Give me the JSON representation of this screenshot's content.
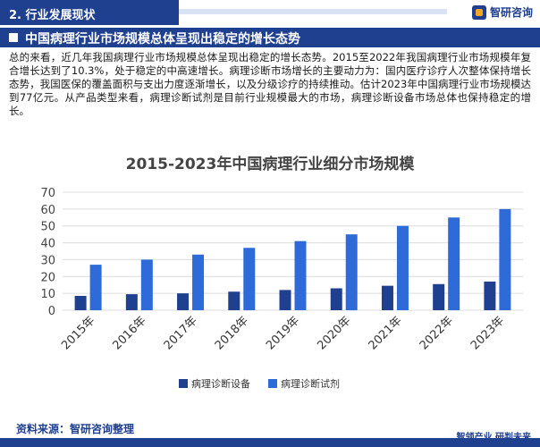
{
  "header": {
    "section": "2. 行业发展现状",
    "logo_text": "智研咨询"
  },
  "banner": {
    "title": "中国病理行业市场规模总体呈现出稳定的增长态势"
  },
  "paragraph": "总的来看，近几年我国病理行业市场规模总体呈现出稳定的增长态势。2015至2022年我国病理行业市场规模年复合增长达到了10.3%，处于稳定的中高速增长。病理诊断市场增长的主要动力为：国内医疗诊疗人次整体保持增长态势，我国医保的覆盖面积与支出力度逐渐增长，以及分级诊疗的持续推动。估计2023年中国病理行业市场规模达到77亿元。从产品类型来看，病理诊断试剂是目前行业规模最大的市场，病理诊断设备市场总体也保持稳定的增长。",
  "chart_data": {
    "type": "bar",
    "title": "2015-2023年中国病理行业细分市场规模",
    "categories": [
      "2015年",
      "2016年",
      "2017年",
      "2018年",
      "2019年",
      "2020年",
      "2021年",
      "2022年",
      "2023年"
    ],
    "series": [
      {
        "name": "病理诊断设备",
        "color": "#1f3f8f",
        "values": [
          8.5,
          9.5,
          10,
          11,
          12,
          13,
          14.5,
          15.5,
          17
        ]
      },
      {
        "name": "病理诊断试剂",
        "color": "#2e6bd9",
        "values": [
          27,
          30,
          33,
          37,
          41,
          45,
          50,
          55,
          60
        ]
      }
    ],
    "yticks": [
      0,
      10,
      20,
      30,
      40,
      50,
      60,
      70
    ],
    "ylim": [
      0,
      70
    ],
    "grid": true,
    "legend": "bottom-center"
  },
  "footer": {
    "source": "资料来源：智研咨询整理",
    "tagline": "智领产业  研判未来"
  }
}
